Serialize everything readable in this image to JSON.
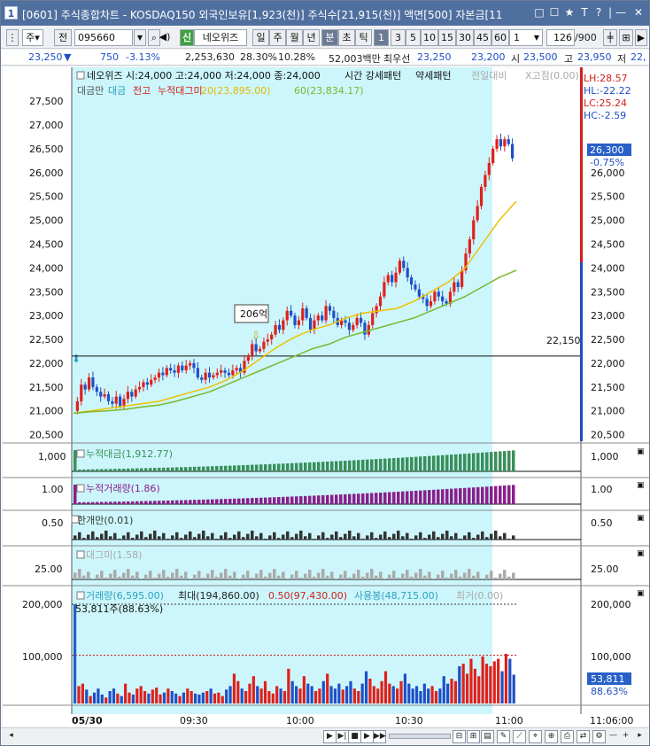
{
  "window": {
    "icon_label": "1",
    "title": "[0601] 주식종합차트 - KOSDAQ150 외국인보유[1,923(천)] 주식수[21,915(천)] 액면[500] 자본금[11",
    "controls": [
      "□",
      "☐",
      "★",
      "T",
      "?",
      "|",
      "—",
      "✕"
    ]
  },
  "toolbar": {
    "market_selector": "주",
    "all_label": "전",
    "stock_code": "095660",
    "stock_name": "네오위즈",
    "stock_badge": "신",
    "periods": [
      "일",
      "주",
      "월",
      "년",
      "분",
      "초",
      "틱"
    ],
    "active_period": "분",
    "intervals": [
      "1",
      "3",
      "5",
      "10",
      "15",
      "30",
      "45",
      "60"
    ],
    "active_interval": "1",
    "interval_select": "1",
    "page_count": "126",
    "page_total": "/900"
  },
  "quote": {
    "price": "23,250",
    "change": "750",
    "change_pct": "-3.13%",
    "volume": "2,253,630",
    "turnover_pct": "28.30%",
    "vol_ratio": "10.28%",
    "amount": "52,003백만",
    "best_ask_label": "최우선",
    "ask": "23,250",
    "bid": "23,200",
    "open_label": "시",
    "open": "23,500",
    "high_label": "고",
    "high": "23,950",
    "low_label": "저",
    "low": "22,"
  },
  "price_panel": {
    "legend_title": "네오위즈 시:24,000 고:24,000 저:24,000 종:24,000",
    "legend_right": [
      "시간 강세패턴",
      "약세패턴",
      "전일대비",
      "X고점(0.00)"
    ],
    "indicators": [
      {
        "label": "대금만",
        "color": "#555555"
      },
      {
        "label": "대금",
        "color": "#2aa0c0"
      },
      {
        "label": "전고",
        "color": "#d0201a"
      },
      {
        "label": "누적대그미",
        "color": "#d0201a"
      },
      {
        "label": "20(23,895.00)",
        "color": "#e8b800"
      },
      {
        "label": "60(23,834.17)",
        "color": "#7ab82e"
      }
    ],
    "y_ticks": [
      "27,500",
      "27,000",
      "26,500",
      "26,000",
      "25,500",
      "25,000",
      "24,500",
      "24,000",
      "23,500",
      "23,000",
      "22,500",
      "22,000",
      "21,500",
      "21,000",
      "20,500"
    ],
    "right_ticks": [
      "26,500",
      "26,000",
      "25,500",
      "25,000",
      "24,500",
      "24,000",
      "23,500",
      "23,000",
      "22,500",
      "22,000",
      "21,500",
      "21,000",
      "20,500"
    ],
    "right_labels": [
      {
        "text": "LH:28.57",
        "color": "#d0201a"
      },
      {
        "text": "HL:-22.22",
        "color": "#1f4fc6"
      },
      {
        "text": "LC:25.24",
        "color": "#d0201a"
      },
      {
        "text": "HC:-2.59",
        "color": "#1f4fc6"
      }
    ],
    "current_price": "26,300",
    "current_pct": "-0.75%",
    "ref_line_label": "22,150",
    "annotation": "206억"
  },
  "subpanels": [
    {
      "name": "누적대금",
      "value_label": "누적대금(1,912.77)",
      "left_tick": "1,000",
      "right_tick": "1,000",
      "color": "#3a8f5a"
    },
    {
      "name": "누적거래량",
      "value_label": "누적거래량(1.86)",
      "left_tick": "1.00",
      "right_tick": "1.00",
      "color": "#8a1f8a"
    },
    {
      "name": "한개만",
      "value_label": "한개만(0.01)",
      "left_tick": "0.50",
      "right_tick": "0.50",
      "color": "#333333"
    },
    {
      "name": "대그미",
      "value_label": "대그미(1.58)",
      "left_tick": "25.00",
      "right_tick": "25.00",
      "color": "#aaaaaa"
    }
  ],
  "volume_panel": {
    "legend": [
      {
        "text": "거래량(6,595.00)",
        "color": "#2aa0c0"
      },
      {
        "text": "최대(194,860.00)",
        "color": "#222222"
      },
      {
        "text": "0.50(97,430.00)",
        "color": "#d0201a"
      },
      {
        "text": "사용봉(48,715.00)",
        "color": "#2aa0c0"
      },
      {
        "text": "최거(0.00)",
        "color": "#aaaaaa"
      }
    ],
    "sub_label": "53,811주(88.63%)",
    "left_ticks": [
      "200,000",
      "100,000"
    ],
    "right_ticks": [
      "200,000",
      "100,000"
    ],
    "current_volume": "53,811",
    "current_pct": "88.63%"
  },
  "time_axis": {
    "labels": [
      "05/30",
      "09:30",
      "10:00",
      "10:30",
      "11:00"
    ],
    "clock": "11:06:00"
  },
  "chart_data": {
    "type": "candlestick",
    "ylim": [
      20400,
      27800
    ],
    "reference_line": 22150,
    "ma_series_names": [
      "20",
      "60"
    ],
    "price_path": [
      21000,
      21200,
      21550,
      21450,
      21700,
      21500,
      21400,
      21300,
      21350,
      21200,
      21150,
      21300,
      21100,
      21250,
      21400,
      21300,
      21450,
      21500,
      21600,
      21550,
      21650,
      21700,
      21800,
      21750,
      21900,
      21850,
      21800,
      21950,
      21850,
      21950,
      22000,
      21900,
      21700,
      21650,
      21800,
      21700,
      21750,
      21800,
      21850,
      21800,
      21750,
      21850,
      21900,
      21800,
      22050,
      22150,
      22400,
      22250,
      22300,
      22450,
      22500,
      22600,
      22800,
      22700,
      22900,
      23100,
      23000,
      22800,
      22900,
      23150,
      22950,
      22700,
      22900,
      23000,
      22900,
      23200,
      23100,
      22950,
      22800,
      22900,
      22850,
      22700,
      22800,
      22950,
      22850,
      22600,
      22800,
      23050,
      23200,
      23400,
      23700,
      23850,
      23700,
      23900,
      24150,
      24000,
      23800,
      23650,
      23550,
      23400,
      23350,
      23200,
      23300,
      23500,
      23400,
      23300,
      23250,
      23500,
      23700,
      23600,
      23950,
      24300,
      24600,
      25000,
      25300,
      25700,
      25950,
      26200,
      26500,
      26700,
      26550,
      26700,
      26600,
      26300
    ],
    "ma20": [
      20950,
      21000,
      21050,
      21100,
      21150,
      21200,
      21300,
      21400,
      21500,
      21650,
      21850,
      22100,
      22350,
      22550,
      22700,
      22800,
      22950,
      23050,
      23100,
      23150,
      23300,
      23500,
      23700,
      24000,
      24500,
      25000,
      25400
    ],
    "ma60": [
      20950,
      20980,
      21000,
      21030,
      21080,
      21120,
      21200,
      21300,
      21400,
      21550,
      21700,
      21850,
      22000,
      22150,
      22300,
      22400,
      22550,
      22650,
      22750,
      22850,
      22950,
      23100,
      23250,
      23400,
      23600,
      23800,
      23950
    ],
    "volume": [
      200000,
      35000,
      40000,
      28000,
      15000,
      22000,
      30000,
      18000,
      12000,
      25000,
      30000,
      20000,
      15000,
      40000,
      22000,
      18000,
      30000,
      35000,
      25000,
      20000,
      28000,
      32000,
      18000,
      22000,
      30000,
      25000,
      20000,
      15000,
      22000,
      30000,
      25000,
      20000,
      18000,
      22000,
      25000,
      30000,
      20000,
      22000,
      15000,
      28000,
      35000,
      60000,
      45000,
      30000,
      25000,
      40000,
      55000,
      35000,
      30000,
      45000,
      25000,
      20000,
      35000,
      30000,
      25000,
      70000,
      45000,
      35000,
      30000,
      55000,
      40000,
      35000,
      25000,
      30000,
      45000,
      60000,
      35000,
      30000,
      40000,
      28000,
      35000,
      45000,
      30000,
      25000,
      40000,
      65000,
      50000,
      35000,
      30000,
      45000,
      65000,
      40000,
      35000,
      30000,
      45000,
      60000,
      40000,
      30000,
      35000,
      25000,
      40000,
      30000,
      35000,
      25000,
      30000,
      55000,
      40000,
      50000,
      45000,
      75000,
      80000,
      60000,
      90000,
      70000,
      55000,
      95000,
      80000,
      75000,
      85000,
      90000,
      65000,
      100000,
      90000,
      58000
    ]
  }
}
